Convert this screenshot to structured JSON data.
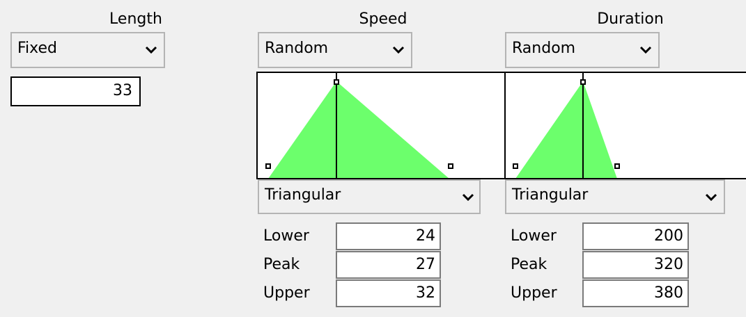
{
  "columns": [
    {
      "label": "Length",
      "mode": "Fixed",
      "value": "33"
    },
    {
      "label": "Speed",
      "mode": "Random",
      "distribution": "Triangular",
      "params": [
        {
          "label": "Lower",
          "value": "24"
        },
        {
          "label": "Peak",
          "value": "27"
        },
        {
          "label": "Upper",
          "value": "32"
        }
      ]
    },
    {
      "label": "Duration",
      "mode": "Random",
      "distribution": "Triangular",
      "params": [
        {
          "label": "Lower",
          "value": "200"
        },
        {
          "label": "Peak",
          "value": "320"
        },
        {
          "label": "Upper",
          "value": "380"
        }
      ]
    }
  ]
}
